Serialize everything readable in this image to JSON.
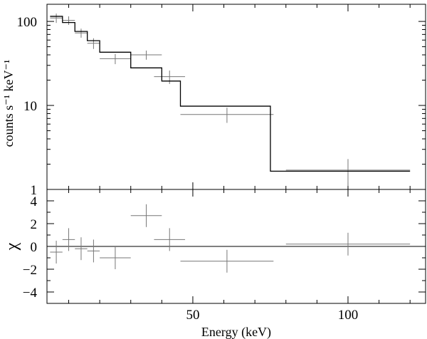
{
  "chart_data": {
    "type": "step",
    "xlabel": "Energy (keV)",
    "x_ticks": [
      "50",
      "100"
    ],
    "xlim": [
      3,
      125
    ],
    "top_panel": {
      "ylabel": "counts s⁻¹ keV⁻¹",
      "yscale": "log",
      "ylim": [
        1,
        160
      ],
      "y_ticks": [
        "1",
        "10",
        "100"
      ],
      "data": [
        {
          "x": 6,
          "xerr": 2,
          "y": 110,
          "yerr": 14
        },
        {
          "x": 10,
          "xerr": 2,
          "y": 103,
          "yerr": 12
        },
        {
          "x": 14,
          "xerr": 2,
          "y": 73,
          "yerr": 9
        },
        {
          "x": 18,
          "xerr": 2,
          "y": 55,
          "yerr": 8
        },
        {
          "x": 25,
          "xerr": 5,
          "y": 36,
          "yerr": 5
        },
        {
          "x": 35,
          "xerr": 5,
          "y": 40,
          "yerr": 5
        },
        {
          "x": 42.5,
          "xerr": 5,
          "y": 22,
          "yerr": 4
        },
        {
          "x": 61,
          "xerr": 15,
          "y": 7.8,
          "yerr": 1.6
        },
        {
          "x": 100,
          "xerr": 20,
          "y": 1.7,
          "yerr": 0.6
        }
      ],
      "model_steps": [
        {
          "x0": 4,
          "x1": 8,
          "y": 115
        },
        {
          "x0": 8,
          "x1": 12,
          "y": 97
        },
        {
          "x0": 12,
          "x1": 16,
          "y": 76
        },
        {
          "x0": 16,
          "x1": 20,
          "y": 59
        },
        {
          "x0": 20,
          "x1": 30,
          "y": 43
        },
        {
          "x0": 30,
          "x1": 40,
          "y": 28
        },
        {
          "x0": 40,
          "x1": 46,
          "y": 19.5
        },
        {
          "x0": 46,
          "x1": 75,
          "y": 9.8
        },
        {
          "x0": 75,
          "x1": 120,
          "y": 1.65
        }
      ]
    },
    "bottom_panel": {
      "ylabel": "χ",
      "ylim": [
        -5,
        5
      ],
      "y_ticks": [
        "−4",
        "−2",
        "0",
        "2",
        "4"
      ],
      "zero_line": true,
      "data": [
        {
          "x": 6,
          "xerr": 2,
          "y": -0.5,
          "yerr": 1
        },
        {
          "x": 10,
          "xerr": 2,
          "y": 0.6,
          "yerr": 1
        },
        {
          "x": 14,
          "xerr": 2,
          "y": -0.2,
          "yerr": 1
        },
        {
          "x": 18,
          "xerr": 2,
          "y": -0.4,
          "yerr": 1
        },
        {
          "x": 25,
          "xerr": 5,
          "y": -1.0,
          "yerr": 1
        },
        {
          "x": 35,
          "xerr": 5,
          "y": 2.7,
          "yerr": 1
        },
        {
          "x": 42.5,
          "xerr": 5,
          "y": 0.6,
          "yerr": 1
        },
        {
          "x": 61,
          "xerr": 15,
          "y": -1.3,
          "yerr": 1
        },
        {
          "x": 100,
          "xerr": 20,
          "y": 0.2,
          "yerr": 1
        }
      ]
    }
  }
}
